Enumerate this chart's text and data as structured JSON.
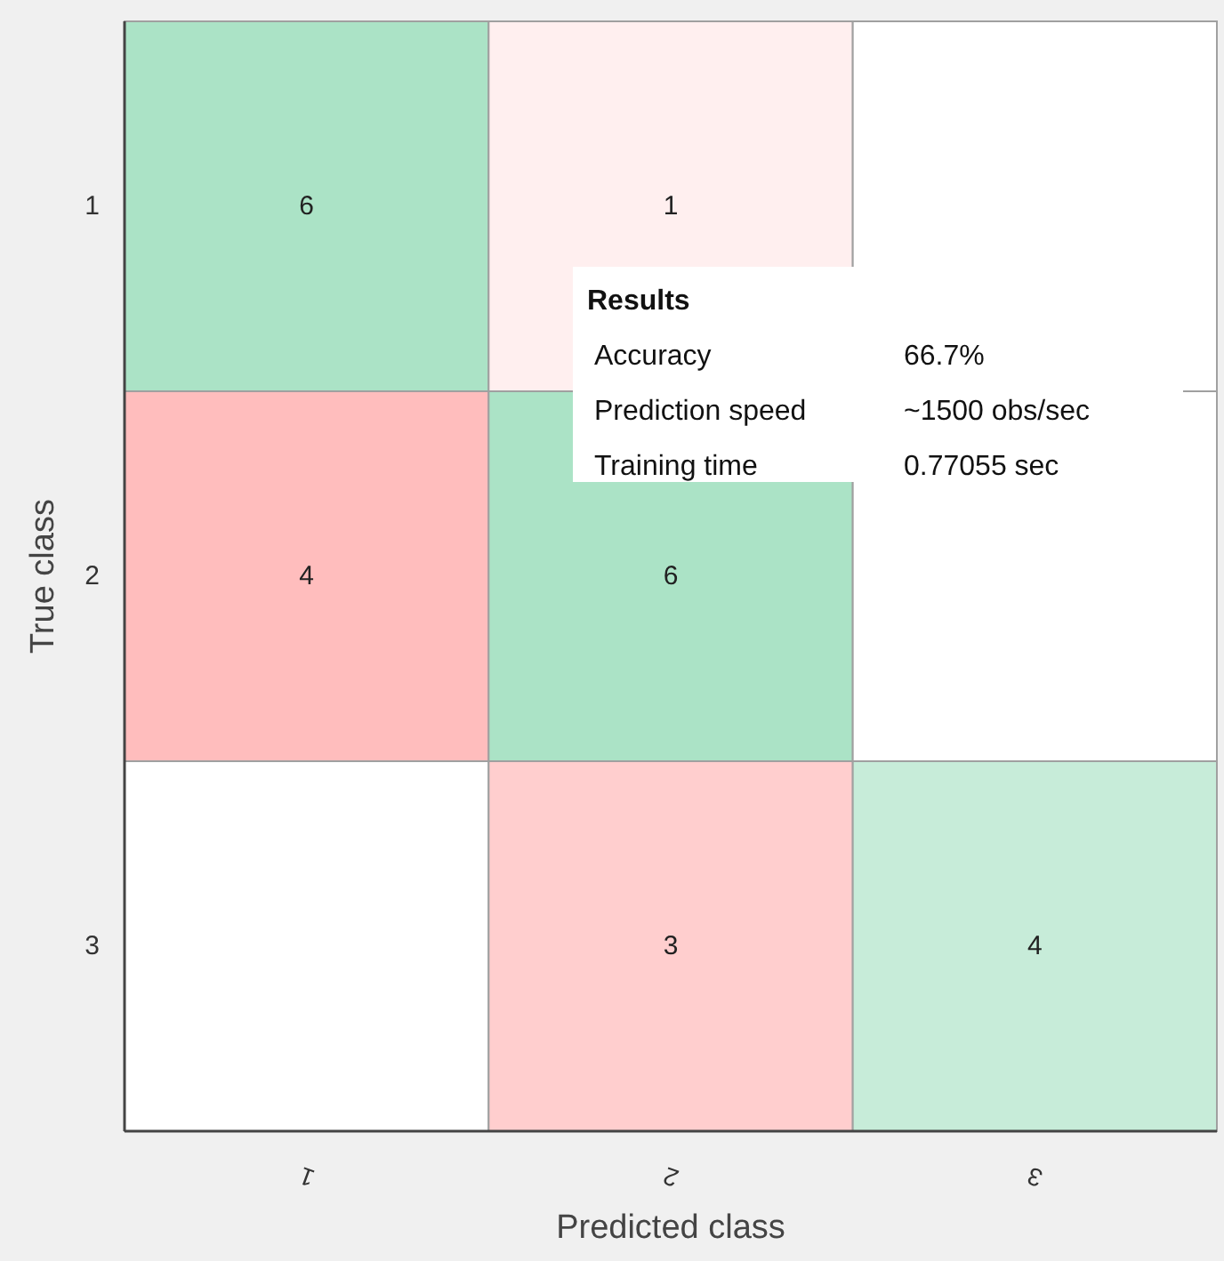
{
  "chart_data": {
    "type": "heatmap",
    "xlabel": "Predicted class",
    "ylabel": "True class",
    "categories": [
      "1",
      "2",
      "3"
    ],
    "y_categories": [
      "1",
      "2",
      "3"
    ],
    "data_labels": true,
    "cells": [
      [
        6,
        1,
        null
      ],
      [
        4,
        6,
        null
      ],
      [
        null,
        3,
        4
      ]
    ],
    "annotations": [
      "Results",
      "Accuracy",
      "66.7%",
      "Prediction speed",
      "~1500 obs/sec",
      "Training time",
      "0.77055 sec"
    ]
  }
}
